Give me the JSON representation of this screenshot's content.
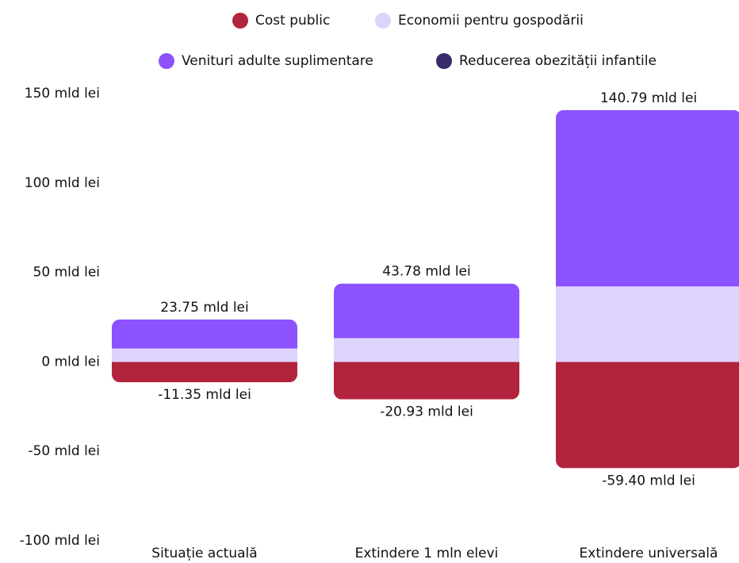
{
  "chart_data": {
    "type": "stacked-bar",
    "categories": [
      "Situație actuală",
      "Extindere 1 mln elevi",
      "Extindere universală"
    ],
    "series": [
      {
        "name": "Cost public",
        "color": "#b2243d",
        "values": [
          -11.35,
          -20.93,
          -59.4
        ],
        "value_labels": [
          "-11.35 mld lei",
          "-20.93 mld lei",
          "-59.40 mld lei"
        ]
      },
      {
        "name": "Economii pentru gospodării",
        "color": "#ddd3fd",
        "values": [
          7.5,
          13.3,
          42.2
        ]
      },
      {
        "name": "Venituri adulte suplimentare",
        "color": "#8c52ff",
        "values": [
          16.25,
          30.48,
          98.59
        ]
      },
      {
        "name": "Reducerea obezității infantile",
        "color": "#3b2a6b",
        "values": [
          0,
          0,
          0
        ]
      }
    ],
    "totals": [
      23.75,
      43.78,
      140.79
    ],
    "total_labels": [
      "23.75 mld lei",
      "43.78 mld lei",
      "140.79 mld lei"
    ],
    "ylim": [
      -100,
      150
    ],
    "yticks": [
      {
        "value": -100,
        "label": "-100 mld lei"
      },
      {
        "value": -50,
        "label": "-50 mld lei"
      },
      {
        "value": 0,
        "label": "0 mld lei"
      },
      {
        "value": 50,
        "label": "50 mld lei"
      },
      {
        "value": 100,
        "label": "100 mld lei"
      },
      {
        "value": 150,
        "label": "150 mld lei"
      }
    ],
    "legend": "top"
  }
}
